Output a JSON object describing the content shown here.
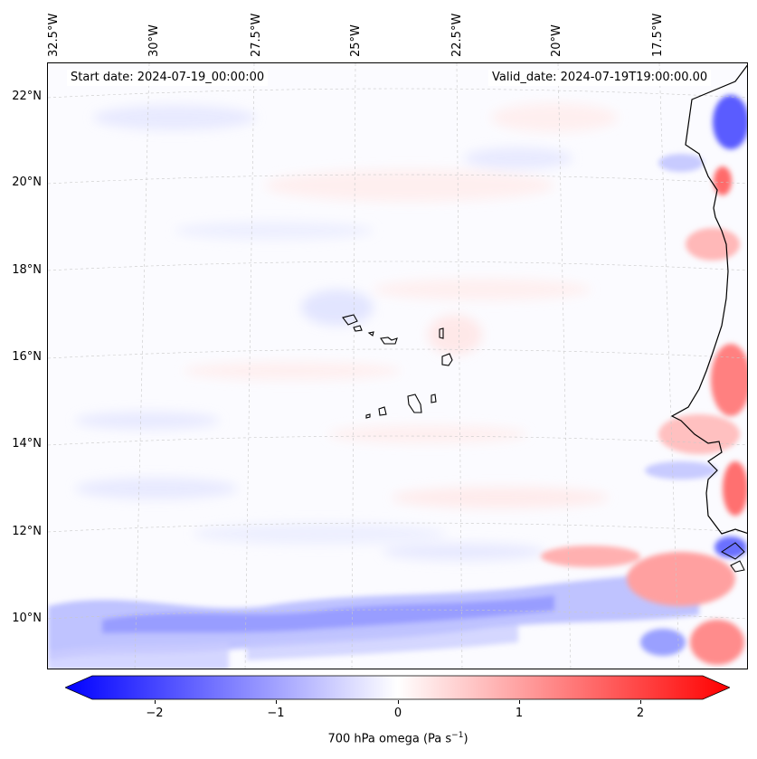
{
  "map": {
    "top_axis_labels": [
      "32.5°W",
      "30°W",
      "27.5°W",
      "25°W",
      "22.5°W",
      "20°W",
      "17.5°W"
    ],
    "left_axis_labels": [
      "22°N",
      "20°N",
      "18°N",
      "16°N",
      "14°N",
      "12°N",
      "10°N"
    ],
    "start_date": "Start date: 2024-07-19_00:00:00",
    "valid_date": "Valid_date: 2024-07-19T19:00:00.00",
    "field": "700 hPa omega",
    "colors": {
      "negative": "#0000ff",
      "zero": "#ffffff",
      "positive": "#ff0000",
      "coastline": "#000000",
      "gridline": "#bbbbbb"
    }
  },
  "colorbar": {
    "ticks": [
      "−2",
      "−1",
      "0",
      "1",
      "2"
    ],
    "tick_values": [
      -2,
      -1,
      0,
      1,
      2
    ],
    "range": [
      -2.6,
      2.6
    ],
    "label_main": "700 hPa omega (Pa s",
    "label_sup": "−1",
    "label_end": ")"
  }
}
